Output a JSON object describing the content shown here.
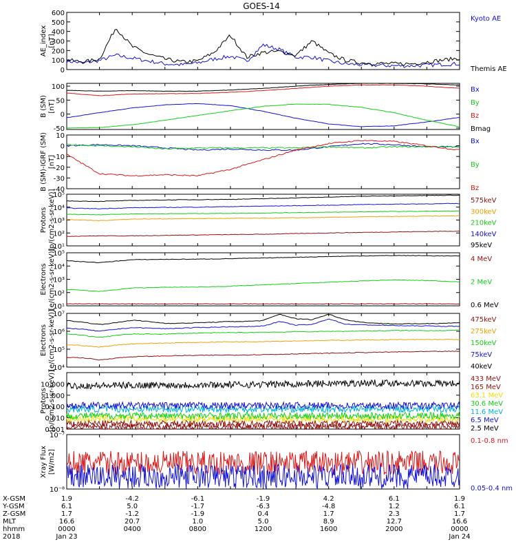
{
  "title": "GOES-14",
  "colors": {
    "black": "#000000",
    "blue": "#1010d8",
    "green": "#10d010",
    "red": "#d81818",
    "darkred": "#901010",
    "orange": "#f0a000",
    "cyan": "#00b0d8",
    "yellow": "#f0e000"
  },
  "chart_data": [
    {
      "type": "line",
      "panel": "ae",
      "ylabel": "AE_index\n[nT]",
      "ylim": [
        0,
        600
      ],
      "yscale": "linear",
      "ticks": [
        "0",
        "100",
        "200",
        "300",
        "400",
        "500",
        "600"
      ],
      "tick_values": [
        0,
        100,
        200,
        300,
        400,
        500,
        600
      ],
      "x_hours": [
        0,
        1,
        2,
        3,
        4,
        5,
        6,
        7,
        8,
        9,
        10,
        11,
        12,
        13,
        14,
        15,
        16,
        17,
        18,
        19,
        20,
        21,
        22,
        23,
        24
      ],
      "series": [
        {
          "name": "Kyoto AE",
          "color": "blue",
          "values": [
            90,
            70,
            95,
            150,
            120,
            90,
            60,
            50,
            70,
            110,
            140,
            90,
            260,
            210,
            130,
            130,
            90,
            60,
            50,
            45,
            40,
            40,
            45,
            55,
            60
          ]
        },
        {
          "name": "Themis AE",
          "color": "black",
          "values": [
            100,
            80,
            110,
            440,
            240,
            160,
            110,
            80,
            90,
            180,
            360,
            130,
            180,
            190,
            150,
            300,
            170,
            100,
            70,
            65,
            60,
            60,
            80,
            100,
            120
          ]
        }
      ]
    },
    {
      "type": "line",
      "panel": "bsm",
      "ylabel": "B (SM)\n[nT]",
      "ylim": [
        -55,
        110
      ],
      "yscale": "linear",
      "ticks": [
        "-50",
        "0",
        "50",
        "100"
      ],
      "tick_values": [
        -50,
        0,
        50,
        100
      ],
      "x_hours": [
        0,
        2,
        4,
        6,
        8,
        10,
        12,
        14,
        16,
        18,
        20,
        22,
        24
      ],
      "series": [
        {
          "name": "Bx",
          "color": "blue",
          "values": [
            -13,
            5,
            22,
            33,
            38,
            30,
            10,
            -15,
            -35,
            -45,
            -42,
            -28,
            -12
          ]
        },
        {
          "name": "By",
          "color": "green",
          "values": [
            -50,
            -48,
            -38,
            -22,
            -5,
            12,
            28,
            36,
            35,
            24,
            5,
            -22,
            -45
          ]
        },
        {
          "name": "Bz",
          "color": "red",
          "values": [
            75,
            66,
            72,
            73,
            74,
            78,
            84,
            92,
            100,
            104,
            104,
            100,
            92
          ]
        },
        {
          "name": "Bmag",
          "color": "black",
          "values": [
            85,
            82,
            84,
            82,
            82,
            86,
            92,
            100,
            106,
            110,
            110,
            108,
            104
          ]
        }
      ]
    },
    {
      "type": "line",
      "panel": "bdiff",
      "ylabel": "B (SM)-IGRF (SM)\n[nT]",
      "ylim": [
        -40,
        10
      ],
      "yscale": "linear",
      "ticks": [
        "-40",
        "-30",
        "-20",
        "-10",
        "0",
        "10"
      ],
      "tick_values": [
        -40,
        -30,
        -20,
        -10,
        0,
        10
      ],
      "x_hours": [
        0,
        2,
        4,
        6,
        8,
        10,
        12,
        14,
        16,
        18,
        20,
        22,
        24
      ],
      "series": [
        {
          "name": "Bx",
          "color": "blue",
          "values": [
            0,
            1,
            0,
            -2,
            -4,
            -3,
            -4,
            -4,
            -1,
            2,
            1,
            -1,
            -1
          ]
        },
        {
          "name": "By",
          "color": "green",
          "values": [
            1,
            0,
            -1,
            -3,
            -2,
            -2,
            -2,
            -2,
            -1,
            -2,
            -1,
            -1,
            -1
          ]
        },
        {
          "name": "Bz",
          "color": "red",
          "values": [
            -8,
            -26,
            -28,
            -27,
            -28,
            -22,
            -13,
            -4,
            2,
            5,
            4,
            0,
            -4
          ]
        }
      ]
    },
    {
      "type": "line",
      "panel": "protons_kev",
      "ylabel": "Protons\n[p/(cm2-s-sr-keV)]",
      "ylim": [
        10,
        100000
      ],
      "yscale": "log",
      "ticks": [
        "10¹",
        "10²",
        "10³",
        "10⁴",
        "10⁵"
      ],
      "tick_values": [
        10,
        100,
        1000,
        10000,
        100000
      ],
      "x_hours": [
        0,
        2,
        4,
        6,
        8,
        10,
        12,
        14,
        16,
        18,
        20,
        22,
        24
      ],
      "series": [
        {
          "name": "575keV",
          "color": "darkred",
          "values": [
            55,
            60,
            60,
            65,
            70,
            75,
            80,
            90,
            100,
            110,
            120,
            130,
            140
          ]
        },
        {
          "name": "300keV",
          "color": "orange",
          "values": [
            1100,
            900,
            1200,
            1250,
            1300,
            1350,
            1400,
            1500,
            1600,
            1800,
            1900,
            2000,
            2100
          ]
        },
        {
          "name": "210keV",
          "color": "green",
          "values": [
            2800,
            2600,
            3000,
            3100,
            3200,
            3300,
            3500,
            3800,
            4000,
            4300,
            4600,
            4800,
            5000
          ]
        },
        {
          "name": "140keV",
          "color": "blue",
          "values": [
            8500,
            7500,
            9000,
            9500,
            10000,
            11000,
            12000,
            13000,
            14000,
            16000,
            17000,
            18000,
            19000
          ]
        },
        {
          "name": "95keV",
          "color": "black",
          "values": [
            30000,
            28000,
            33000,
            36000,
            38000,
            40000,
            45000,
            52000,
            60000,
            70000,
            75000,
            80000,
            85000
          ]
        }
      ]
    },
    {
      "type": "line",
      "panel": "electrons_mev",
      "ylabel": "Electrons\n[e/(cm2-s-sr-keV)]",
      "ylim": [
        10,
        100000
      ],
      "yscale": "log",
      "ticks": [
        "10¹",
        "10²",
        "10³",
        "10⁴",
        "10⁵"
      ],
      "tick_values": [
        10,
        100,
        1000,
        10000,
        100000
      ],
      "x_hours": [
        0,
        2,
        4,
        6,
        8,
        10,
        12,
        14,
        16,
        18,
        20,
        22,
        24
      ],
      "series": [
        {
          "name": "4 MeV",
          "color": "darkred",
          "values": [
            14,
            14,
            14,
            14,
            14,
            14,
            14,
            14,
            14,
            14,
            14,
            14,
            14
          ]
        },
        {
          "name": "2 MeV",
          "color": "green",
          "values": [
            180,
            120,
            220,
            250,
            260,
            300,
            380,
            480,
            600,
            750,
            900,
            800,
            650
          ]
        },
        {
          "name": "0.6 MeV",
          "color": "black",
          "values": [
            25000,
            18000,
            30000,
            32000,
            33000,
            36000,
            40000,
            46000,
            52000,
            58000,
            62000,
            60000,
            56000
          ]
        }
      ]
    },
    {
      "type": "line",
      "panel": "electrons_kev",
      "ylabel": "Electrons\n[e/(cm2-s-sr-keV)]",
      "ylim": [
        10000,
        10000000
      ],
      "yscale": "log",
      "ticks": [
        "10⁴",
        "10⁵",
        "10⁶",
        "10⁷"
      ],
      "tick_values": [
        10000,
        100000,
        1000000,
        10000000
      ],
      "x_hours": [
        0,
        1,
        2,
        3,
        4,
        5,
        6,
        7,
        8,
        9,
        10,
        11,
        12,
        13,
        14,
        15,
        16,
        17,
        18,
        19,
        20,
        21,
        22,
        23,
        24
      ],
      "series": [
        {
          "name": "475keV",
          "color": "darkred",
          "values": [
            35000,
            33000,
            25000,
            32000,
            38000,
            40000,
            42000,
            44000,
            45000,
            46000,
            47000,
            48000,
            50000,
            52000,
            55000,
            57000,
            60000,
            62000,
            65000,
            67000,
            70000,
            72000,
            74000,
            75000,
            76000
          ]
        },
        {
          "name": "275keV",
          "color": "orange",
          "values": [
            180000,
            160000,
            130000,
            170000,
            200000,
            210000,
            220000,
            230000,
            240000,
            250000,
            260000,
            260000,
            270000,
            280000,
            290000,
            300000,
            310000,
            320000,
            330000,
            330000,
            340000,
            340000,
            350000,
            350000,
            350000
          ]
        },
        {
          "name": "150keV",
          "color": "green",
          "values": [
            700000,
            600000,
            450000,
            600000,
            700000,
            700000,
            700000,
            750000,
            800000,
            820000,
            850000,
            850000,
            900000,
            900000,
            950000,
            950000,
            1000000,
            1000000,
            1050000,
            1050000,
            1100000,
            1100000,
            1100000,
            1100000,
            1150000
          ]
        },
        {
          "name": "75keV",
          "color": "blue",
          "values": [
            1500000,
            1300000,
            1000000,
            1300000,
            1600000,
            1500000,
            1400000,
            1500000,
            1600000,
            1700000,
            1800000,
            1800000,
            2000000,
            3500000,
            2200000,
            2400000,
            5000000,
            2500000,
            2300000,
            2200000,
            2100000,
            2000000,
            2000000,
            1900000,
            1900000
          ]
        },
        {
          "name": "40keV",
          "color": "black",
          "values": [
            4000000,
            3200000,
            2400000,
            3000000,
            4200000,
            3500000,
            2800000,
            2800000,
            3000000,
            3200000,
            3500000,
            3600000,
            4000000,
            9000000,
            5000000,
            4500000,
            9000000,
            4500000,
            3200000,
            2800000,
            2600000,
            2600000,
            2700000,
            2800000,
            3000000
          ]
        }
      ]
    },
    {
      "type": "line",
      "panel": "protons_mev",
      "ylabel": "Protons\n[p/(cm2-s-sr-keV)]",
      "ylim": [
        0.001,
        100
      ],
      "yscale": "log",
      "ticks": [
        "0.001",
        "0.010",
        "0.100",
        "1.000",
        "10.000"
      ],
      "tick_values": [
        0.001,
        0.01,
        0.1,
        1,
        10
      ],
      "x_hours": [
        0,
        2,
        4,
        6,
        8,
        10,
        12,
        14,
        16,
        18,
        20,
        22,
        24
      ],
      "series": [
        {
          "name": "433 MeV",
          "color": "darkred",
          "values": [
            0.0015,
            0.0015,
            0.0015,
            0.0015,
            0.0015,
            0.0015,
            0.0015,
            0.0015,
            0.0015,
            0.0015,
            0.0015,
            0.0015,
            0.0015
          ]
        },
        {
          "name": "165 MeV",
          "color": "darkred",
          "values": [
            0.003,
            0.003,
            0.003,
            0.003,
            0.003,
            0.003,
            0.003,
            0.003,
            0.003,
            0.003,
            0.003,
            0.003,
            0.003
          ]
        },
        {
          "name": "63.1 MeV",
          "color": "yellow",
          "values": [
            0.008,
            0.008,
            0.008,
            0.008,
            0.008,
            0.008,
            0.008,
            0.008,
            0.008,
            0.008,
            0.008,
            0.008,
            0.008
          ]
        },
        {
          "name": "30.6 MeV",
          "color": "green",
          "values": [
            0.015,
            0.015,
            0.015,
            0.015,
            0.015,
            0.015,
            0.015,
            0.015,
            0.015,
            0.015,
            0.015,
            0.015,
            0.015
          ]
        },
        {
          "name": "11.6 MeV",
          "color": "cyan",
          "values": [
            0.06,
            0.06,
            0.06,
            0.06,
            0.06,
            0.06,
            0.06,
            0.06,
            0.06,
            0.06,
            0.06,
            0.06,
            0.06
          ]
        },
        {
          "name": "6.5 MeV",
          "color": "blue",
          "values": [
            0.12,
            0.12,
            0.12,
            0.12,
            0.12,
            0.12,
            0.12,
            0.12,
            0.12,
            0.12,
            0.12,
            0.12,
            0.12
          ]
        },
        {
          "name": "2.5 MeV",
          "color": "black",
          "values": [
            7,
            7,
            7.5,
            8,
            8,
            8.5,
            9,
            10,
            11,
            12,
            12,
            11,
            11
          ]
        }
      ]
    },
    {
      "type": "line",
      "panel": "xray",
      "ylabel": "Xray Flux\n[W/m2]",
      "ylim": [
        1e-08,
        1e-07
      ],
      "yscale": "log",
      "ticks": [
        "10⁻⁸",
        "10⁻⁷"
      ],
      "tick_values": [
        1e-08,
        1e-07
      ],
      "x_hours": [
        0,
        4,
        8,
        12,
        16,
        20,
        24
      ],
      "series": [
        {
          "name": "0.1-0.8 nm",
          "color": "red",
          "values": [
            3e-08,
            3e-08,
            3e-08,
            3e-08,
            3e-08,
            3e-08,
            3e-08
          ]
        },
        {
          "name": "0.05-0.4 nm",
          "color": "blue",
          "values": [
            1.7e-08,
            1.7e-08,
            1.7e-08,
            1.7e-08,
            1.7e-08,
            1.7e-08,
            1.7e-08
          ]
        }
      ]
    }
  ],
  "footer": {
    "row_labels": [
      "X-GSM",
      "Y-GSM",
      "Z-GSM",
      "MLT",
      "hhmm",
      "2018"
    ],
    "columns": [
      [
        "1.9",
        "6.1",
        "1.7",
        "16.6",
        "0000",
        "Jan 23"
      ],
      [
        "-4.2",
        "5.0",
        "-1.2",
        "20.7",
        "0400",
        ""
      ],
      [
        "-6.1",
        "-1.7",
        "-1.9",
        "1.0",
        "0800",
        ""
      ],
      [
        "-1.9",
        "-6.3",
        "0.4",
        "5.0",
        "1200",
        ""
      ],
      [
        "4.2",
        "-4.8",
        "1.7",
        "8.9",
        "1600",
        ""
      ],
      [
        "6.1",
        "1.2",
        "2.3",
        "12.7",
        "2000",
        ""
      ],
      [
        "1.9",
        "6.1",
        "1.7",
        "16.6",
        "0000",
        "Jan 24"
      ]
    ]
  }
}
